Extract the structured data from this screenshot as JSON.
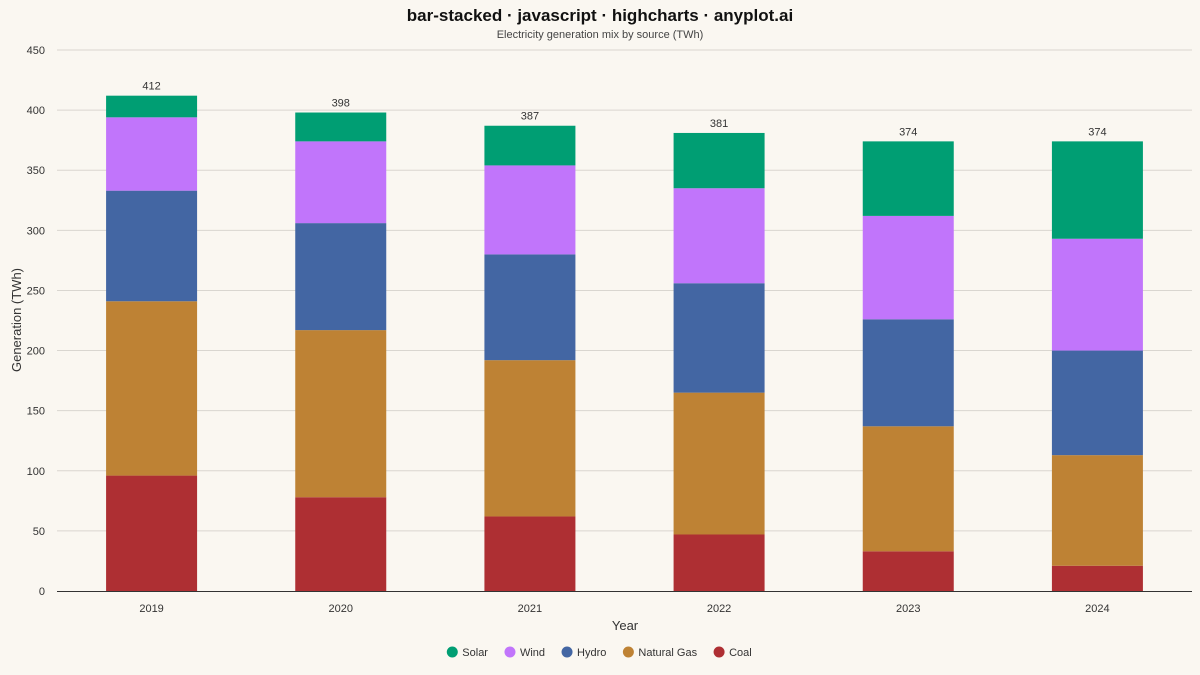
{
  "chart_data": {
    "type": "bar",
    "stacked": true,
    "title": "bar-stacked · javascript · highcharts · anyplot.ai",
    "subtitle": "Electricity generation mix by source (TWh)",
    "xlabel": "Year",
    "ylabel": "Generation (TWh)",
    "ylim": [
      0,
      450
    ],
    "yticks": [
      0,
      50,
      100,
      150,
      200,
      250,
      300,
      350,
      400,
      450
    ],
    "grid": true,
    "legend_position": "bottom-center",
    "categories": [
      "2019",
      "2020",
      "2021",
      "2022",
      "2023",
      "2024"
    ],
    "totals": [
      412,
      398,
      387,
      381,
      374,
      374
    ],
    "totals_labels": [
      "412",
      "398",
      "387",
      "381",
      "374",
      "374"
    ],
    "series": [
      {
        "name": "Coal",
        "color": "#AE2F33",
        "values": [
          96,
          78,
          62,
          47,
          33,
          21
        ]
      },
      {
        "name": "Natural Gas",
        "color": "#BE8234",
        "values": [
          145,
          139,
          130,
          118,
          104,
          92
        ]
      },
      {
        "name": "Hydro",
        "color": "#4366A3",
        "values": [
          92,
          89,
          88,
          91,
          89,
          87
        ]
      },
      {
        "name": "Wind",
        "color": "#C175FB",
        "values": [
          61,
          68,
          74,
          79,
          86,
          93
        ]
      },
      {
        "name": "Solar",
        "color": "#009E73",
        "values": [
          18,
          24,
          33,
          46,
          62,
          81
        ]
      }
    ],
    "legend_order": [
      "Solar",
      "Wind",
      "Hydro",
      "Natural Gas",
      "Coal"
    ]
  }
}
